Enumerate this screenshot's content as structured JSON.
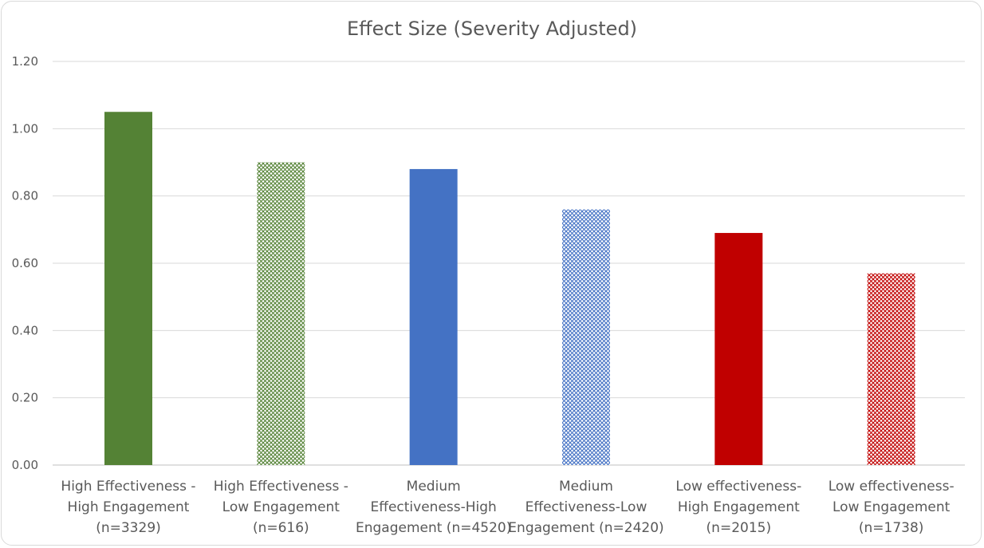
{
  "chart_data": {
    "type": "bar",
    "title": "Effect Size (Severity Adjusted)",
    "xlabel": "",
    "ylabel": "",
    "ylim": [
      0,
      1.2
    ],
    "yticks": [
      "0.00",
      "0.20",
      "0.40",
      "0.60",
      "0.80",
      "1.00",
      "1.20"
    ],
    "grid": true,
    "legend": "none",
    "categories": [
      [
        "High Effectiveness -",
        "High Engagement",
        "(n=3329)"
      ],
      [
        "High Effectiveness -",
        "Low Engagement",
        "(n=616)"
      ],
      [
        "Medium",
        "Effectiveness-High",
        "Engagement (n=4520)"
      ],
      [
        "Medium",
        "Effectiveness-Low",
        "Engagement (n=2420)"
      ],
      [
        "Low effectiveness-",
        "High Engagement",
        "(n=2015)"
      ],
      [
        "Low effectiveness-",
        "Low Engagement",
        "(n=1738)"
      ]
    ],
    "values": [
      1.05,
      0.9,
      0.88,
      0.76,
      0.69,
      0.57
    ],
    "bar_colors": [
      "#548235",
      "#548235",
      "#4472c4",
      "#4472c4",
      "#c00000",
      "#c00000"
    ],
    "bar_patterns": [
      "solid",
      "lattice",
      "solid",
      "lattice",
      "solid",
      "lattice"
    ]
  }
}
